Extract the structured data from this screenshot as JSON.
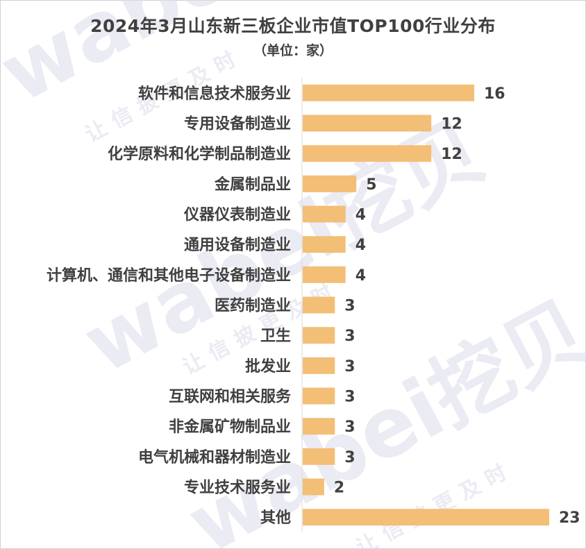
{
  "chart_data": {
    "type": "bar",
    "orientation": "horizontal",
    "title": "2024年3月山东新三板企业市值TOP100行业分布",
    "subtitle": "（单位：家）",
    "categories": [
      "软件和信息技术服务业",
      "专用设备制造业",
      "化学原料和化学制品制造业",
      "金属制品业",
      "仪器仪表制造业",
      "通用设备制造业",
      "计算机、通信和其他电子设备制造业",
      "医药制造业",
      "卫生",
      "批发业",
      "互联网和相关服务",
      "非金属矿物制品业",
      "电气机械和器材制造业",
      "专业技术服务业",
      "其他"
    ],
    "values": [
      16,
      12,
      12,
      5,
      4,
      4,
      4,
      3,
      3,
      3,
      3,
      3,
      3,
      2,
      23
    ],
    "data_labels": [
      "16",
      "12",
      "12",
      "5",
      "4",
      "4",
      "4",
      "3",
      "3",
      "3",
      "3",
      "3",
      "3",
      "2",
      "23"
    ],
    "xlim": [
      0,
      23
    ],
    "grid": false,
    "legend": "none",
    "bar_color": "#F3BE76",
    "label_color": "#404040",
    "axis_color": "#D9D9D9"
  },
  "watermark": {
    "brand": "wabei挖贝",
    "slogan": "让信披更及时",
    "color": "#D8DAEA"
  }
}
